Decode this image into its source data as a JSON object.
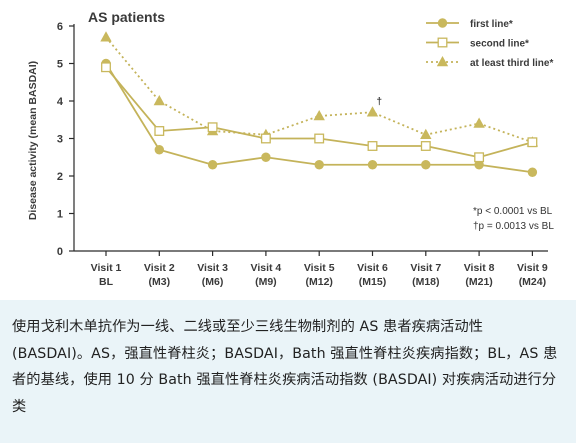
{
  "chart_data": {
    "type": "line",
    "title": "AS patients",
    "ylabel": "Disease activity (mean BASDAI)",
    "xlabel": "",
    "ylim": [
      0,
      6
    ],
    "yticks": [
      "0",
      "1",
      "2",
      "3",
      "4",
      "5",
      "6"
    ],
    "categories": [
      [
        "Visit 1",
        "BL"
      ],
      [
        "Visit 2",
        "(M3)"
      ],
      [
        "Visit 3",
        "(M6)"
      ],
      [
        "Visit 4",
        "(M9)"
      ],
      [
        "Visit 5",
        "(M12)"
      ],
      [
        "Visit 6",
        "(M15)"
      ],
      [
        "Visit 7",
        "(M18)"
      ],
      [
        "Visit 8",
        "(M21)"
      ],
      [
        "Visit 9",
        "(M24)"
      ]
    ],
    "series": [
      {
        "name": "first line*",
        "marker": "filled-circle",
        "line_style": "solid",
        "values": [
          5.0,
          2.7,
          2.3,
          2.5,
          2.3,
          2.3,
          2.3,
          2.3,
          2.1
        ]
      },
      {
        "name": "second line*",
        "marker": "open-square",
        "line_style": "solid",
        "values": [
          4.9,
          3.2,
          3.3,
          3.0,
          3.0,
          2.8,
          2.8,
          2.5,
          2.9
        ]
      },
      {
        "name": "at least third line*",
        "marker": "filled-triangle",
        "line_style": "dotted",
        "values": [
          5.7,
          4.0,
          3.2,
          3.1,
          3.6,
          3.7,
          3.1,
          3.4,
          2.9
        ]
      }
    ],
    "point_annotations": [
      {
        "series": 2,
        "index": 5,
        "text": "†"
      }
    ],
    "annotations": [
      "*p < 0.0001 vs BL",
      "†p = 0.0013 vs BL"
    ],
    "legend_position": "top-right",
    "grid": false
  },
  "colors": {
    "series_line": "#c4b35a",
    "marker_fill": "#c9b85d",
    "axis": "#2a2a2a",
    "caption_background": "#eaf4f8"
  },
  "caption": "使用戈利木单抗作为一线、二线或至少三线生物制剂的 AS 患者疾病活动性 (BASDAI)。AS，强直性脊柱炎；BASDAI，Bath 强直性脊柱炎疾病指数；BL，AS 患者的基线，使用 10 分 Bath 强直性脊柱炎疾病活动指数 (BASDAI) 对疾病活动进行分类"
}
